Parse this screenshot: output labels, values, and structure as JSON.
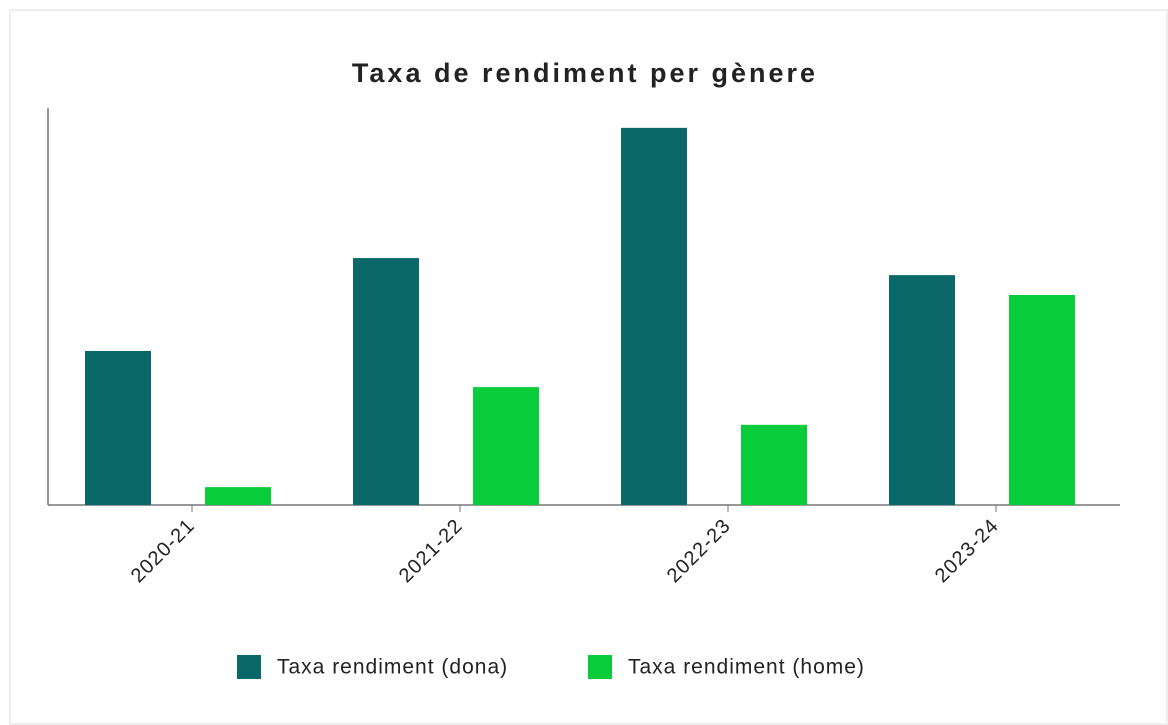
{
  "chart_data": {
    "type": "bar",
    "title": "Taxa de rendiment per gènere",
    "categories": [
      "2020-21",
      "2021-22",
      "2022-23",
      "2023-24"
    ],
    "series": [
      {
        "name": "Taxa rendiment (dona)",
        "color": "#0a6868",
        "values": [
          38.8,
          62.2,
          95,
          57.9
        ]
      },
      {
        "name": "Taxa rendiment (home)",
        "color": "#08cc3a",
        "values": [
          4.5,
          29.7,
          20.2,
          52.9
        ]
      }
    ],
    "ylim": [
      0,
      100
    ]
  }
}
